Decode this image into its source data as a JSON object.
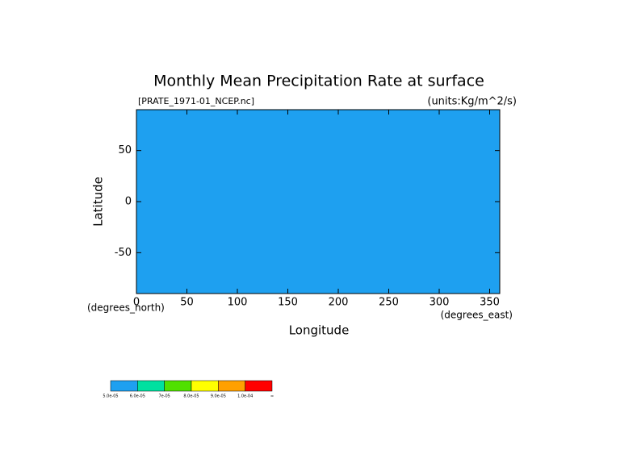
{
  "chart_data": {
    "type": "map",
    "title": "Monthly Mean Precipitation Rate at surface",
    "subtitle": "[PRATE_1971-01_NCEP.nc]",
    "units": "(units:Kg/m^2/s)",
    "x_label": "Longitude",
    "y_label": "Latitude",
    "x_unit": "(degrees_east)",
    "y_unit": "(degrees_north)",
    "xlim": [
      0,
      360
    ],
    "ylim": [
      -90,
      90
    ],
    "xticks": [
      0,
      50,
      100,
      150,
      200,
      250,
      300,
      350
    ],
    "yticks": [
      -50,
      0,
      50
    ],
    "background_color": "#1ea0f0",
    "colorbar": {
      "colors": [
        "#1ea0f0",
        "#00e0a0",
        "#50e000",
        "#ffff00",
        "#ffa000",
        "#ff0000"
      ],
      "labels": [
        "5.0e-05",
        "6.0e-05",
        "7e-05",
        "8.0e-05",
        "9.0e-05",
        "1.0e-04",
        "∞"
      ]
    }
  }
}
